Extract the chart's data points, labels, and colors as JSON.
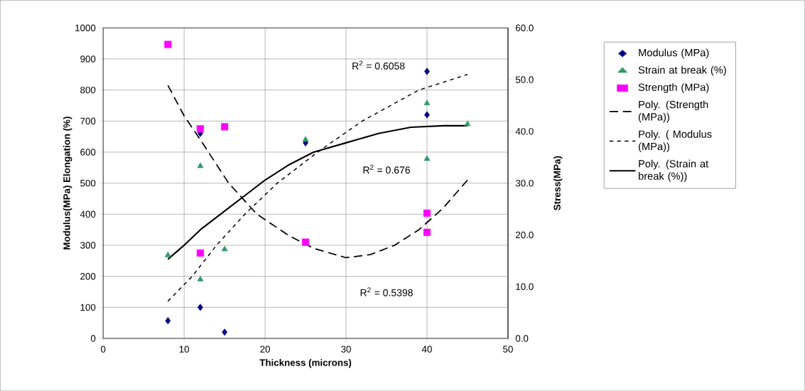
{
  "chart_data": {
    "type": "scatter",
    "xlabel": "Thickness (microns)",
    "ylabel": "Modulus(MPa) Elongation (%)",
    "y2label": "Stress(MPa)",
    "xlim": [
      0,
      50
    ],
    "xticks": [
      0,
      10,
      20,
      30,
      40,
      50
    ],
    "ylim": [
      0,
      1000
    ],
    "yticks": [
      0,
      100,
      200,
      300,
      400,
      500,
      600,
      700,
      800,
      900,
      1000
    ],
    "y2lim": [
      0,
      60
    ],
    "y2ticks": [
      {
        "value": 0,
        "label": "0.0"
      },
      {
        "value": 10,
        "label": "10.0"
      },
      {
        "value": 20,
        "label": "20.0"
      },
      {
        "value": 30,
        "label": "30.0"
      },
      {
        "value": 40,
        "label": "40.0"
      },
      {
        "value": 50,
        "label": "50.0"
      },
      {
        "value": 60,
        "label": "60.0"
      }
    ],
    "grid": true,
    "legend": "right",
    "annotations": [
      "R$^{2}$ = 0.6058",
      "R$^{2}$ = 0.676",
      "R$^{2}$ = 0.5398"
    ],
    "series": [
      {
        "name": "Modulus (MPa)",
        "marker": "diamond",
        "color": "#000080",
        "x": [
          8,
          12,
          12,
          15,
          25,
          40,
          40
        ],
        "values": [
          57,
          660,
          100,
          20,
          630,
          860,
          720
        ]
      },
      {
        "name": "Strain at break (%)",
        "marker": "triangle",
        "color": "#339966",
        "x": [
          8,
          12,
          12,
          15,
          25,
          40,
          40,
          45
        ],
        "values": [
          268,
          555,
          190,
          287,
          640,
          757,
          578,
          690
        ]
      },
      {
        "name": "Strength (MPa)",
        "marker": "square",
        "color": "#ff00ff",
        "axis": "y2",
        "x": [
          8,
          12,
          12,
          15,
          25,
          40,
          40
        ],
        "values": [
          56.8,
          40.5,
          16.5,
          40.9,
          18.6,
          24.2,
          20.5
        ]
      },
      {
        "name": "Poly. (Strength (MPa))",
        "type": "line",
        "line_style": "dashed",
        "color": "#000000",
        "axis": "y2",
        "x": [
          8,
          10,
          12,
          15.5,
          19,
          23,
          26,
          30,
          33,
          36,
          39,
          42,
          45
        ],
        "values": [
          48.9,
          43.0,
          38.4,
          30.0,
          24.0,
          19.8,
          17.4,
          15.6,
          16.2,
          18.0,
          21.0,
          25.2,
          30.6
        ]
      },
      {
        "name": "Poly. ( Modulus (MPa))",
        "type": "line",
        "line_style": "dotted",
        "color": "#000000",
        "x": [
          8,
          11,
          14,
          17.5,
          21.5,
          26.5,
          32,
          39,
          45
        ],
        "values": [
          120,
          200,
          300,
          400,
          500,
          600,
          700,
          800,
          850
        ]
      },
      {
        "name": "Poly. (Strain at break (%))",
        "type": "line",
        "line_style": "solid",
        "color": "#000000",
        "x": [
          8,
          10,
          12,
          15,
          18,
          20,
          23,
          26,
          30,
          34,
          38,
          42,
          45
        ],
        "values": [
          255,
          300,
          350,
          410,
          470,
          510,
          560,
          600,
          630,
          660,
          680,
          685,
          685
        ]
      }
    ]
  }
}
